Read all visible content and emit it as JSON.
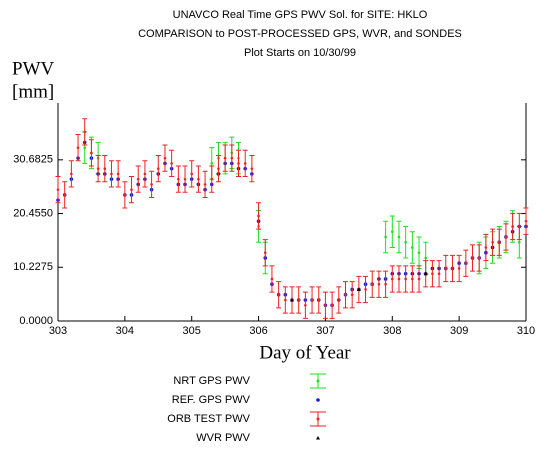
{
  "chart_data": {
    "type": "errorbar",
    "title": [
      "UNAVCO Real Time GPS PWV Sol. for SITE: HKLO",
      "COMPARISON to POST-PROCESSED GPS, WVR, and SONDES",
      "Plot Starts on 10/30/99"
    ],
    "y_label": [
      "PWV",
      "[mm]"
    ],
    "x_label": "Day of Year",
    "xlim": [
      303,
      310
    ],
    "xticks": [
      303,
      304,
      305,
      306,
      307,
      308,
      309,
      310
    ],
    "ylim": [
      0,
      41.5
    ],
    "yticks": [
      {
        "value": 0,
        "label": "0.0000"
      },
      10.2275,
      {
        "value": 20.455,
        "label": "20.4550"
      },
      30.6825
    ],
    "series": [
      {
        "name": "NRT GPS PWV",
        "color": "#22dd22",
        "marker": "errorbar",
        "error": 3,
        "x": [
          303.4,
          303.5,
          303.6,
          305.3,
          305.4,
          305.5,
          305.6,
          305.7,
          306.0,
          306.1,
          307.9,
          308.0,
          308.1,
          308.2,
          308.3,
          308.4,
          308.5,
          309.3,
          309.4,
          309.5,
          309.6,
          309.7,
          309.8,
          309.9
        ],
        "values": [
          33,
          32,
          31,
          30,
          31,
          31,
          32,
          31,
          18,
          12,
          16,
          17,
          16,
          15,
          14,
          13,
          12,
          12,
          13,
          14,
          15,
          16,
          18,
          15
        ]
      },
      {
        "name": "REF. GPS PWV",
        "color": "#1a1ad0",
        "marker": "dot",
        "x": [
          303.0,
          303.1,
          303.2,
          303.3,
          303.4,
          303.5,
          303.6,
          303.7,
          303.8,
          303.9,
          304.0,
          304.1,
          304.2,
          304.3,
          304.4,
          304.5,
          304.6,
          304.7,
          304.8,
          304.9,
          305.0,
          305.1,
          305.2,
          305.3,
          305.4,
          305.5,
          305.6,
          305.7,
          305.8,
          305.9,
          306.0,
          306.1,
          306.2,
          306.3,
          306.4,
          306.5,
          306.6,
          306.7,
          306.8,
          306.9,
          307.0,
          307.1,
          307.2,
          307.3,
          307.4,
          307.5,
          307.6,
          307.7,
          307.8,
          307.9,
          308.0,
          308.1,
          308.2,
          308.3,
          308.4,
          308.5,
          308.6,
          308.7,
          308.8,
          308.9,
          309.0,
          309.1,
          309.2,
          309.3,
          309.4,
          309.5,
          309.6,
          309.7,
          309.8,
          309.9,
          310.0
        ],
        "values": [
          23,
          24,
          27,
          31,
          34,
          31,
          28,
          28,
          27,
          27,
          24,
          24,
          26,
          27,
          25,
          28,
          30,
          29,
          26,
          26,
          27,
          26,
          25,
          26,
          28,
          30,
          30,
          29,
          29,
          28,
          19,
          12,
          7,
          5,
          5,
          4,
          4,
          4,
          4,
          4,
          3,
          3,
          4,
          5,
          6,
          6,
          7,
          7,
          8,
          8,
          9,
          9,
          9,
          9,
          9,
          9,
          10,
          10,
          10,
          10,
          11,
          11,
          12,
          12,
          13,
          14,
          15,
          16,
          17,
          18,
          18
        ]
      },
      {
        "name": "ORB TEST PWV",
        "color": "#ee2222",
        "marker": "errorbar",
        "error": 2.5,
        "x": [
          303.0,
          303.1,
          303.2,
          303.3,
          303.4,
          303.5,
          303.6,
          303.7,
          303.8,
          303.9,
          304.0,
          304.1,
          304.2,
          304.3,
          304.4,
          304.5,
          304.6,
          304.7,
          304.8,
          304.9,
          305.0,
          305.1,
          305.2,
          305.3,
          305.4,
          305.5,
          305.6,
          305.7,
          305.8,
          305.9,
          306.0,
          306.1,
          306.2,
          306.3,
          306.4,
          306.5,
          306.6,
          306.7,
          306.8,
          306.9,
          307.0,
          307.1,
          307.2,
          307.3,
          307.4,
          307.5,
          307.6,
          307.7,
          307.8,
          307.9,
          308.0,
          308.1,
          308.2,
          308.3,
          308.4,
          308.5,
          308.6,
          308.7,
          308.8,
          308.9,
          309.0,
          309.1,
          309.2,
          309.3,
          309.4,
          309.5,
          309.6,
          309.7,
          309.8,
          309.9,
          310.0
        ],
        "values": [
          25,
          24,
          28,
          33,
          36,
          32,
          29,
          29,
          28,
          28,
          24,
          25,
          27,
          28,
          26,
          29,
          31,
          30,
          27,
          27,
          28,
          27,
          26,
          27,
          29,
          31,
          31,
          30,
          30,
          29,
          20,
          13,
          8,
          5,
          4,
          4,
          4,
          3,
          4,
          4,
          3,
          3,
          4,
          5,
          5,
          6,
          6,
          7,
          7,
          7,
          8,
          8,
          8,
          8,
          8,
          9,
          9,
          9,
          10,
          10,
          10,
          11,
          12,
          12,
          14,
          15,
          15,
          16,
          18,
          18,
          19
        ]
      },
      {
        "name": "WVR PWV",
        "color": "#000000",
        "marker": "triangle",
        "x": [
          306.5,
          307.5,
          308.5
        ],
        "values": [
          4,
          6,
          9
        ]
      }
    ]
  }
}
